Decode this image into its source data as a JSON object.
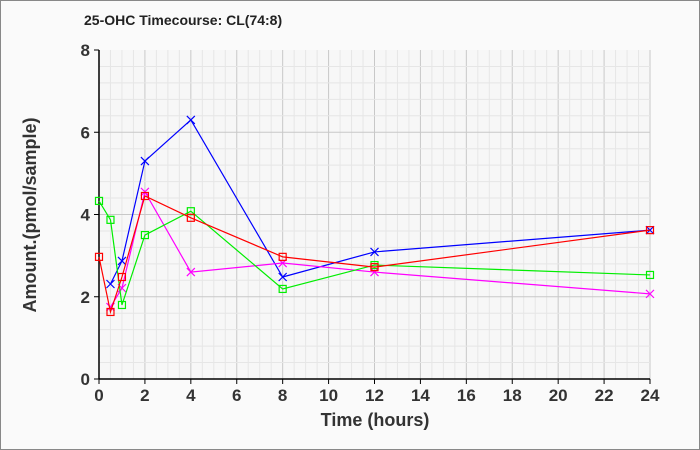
{
  "chart_data": {
    "type": "line",
    "title": "25-OHC Timecourse: CL(74:8)",
    "xlabel": "Time (hours)",
    "ylabel": "Amount.(pmol/sample)",
    "xlim": [
      0,
      24
    ],
    "ylim": [
      0,
      8
    ],
    "xticks": [
      "0",
      "2",
      "4",
      "6",
      "8",
      "10",
      "12",
      "14",
      "16",
      "18",
      "20",
      "22",
      "24"
    ],
    "yticks": [
      "0",
      "2",
      "4",
      "6",
      "8"
    ],
    "grid": true,
    "series": [
      {
        "name": "blue",
        "color": "#0000ff",
        "marker": "x",
        "x": [
          0.5,
          1,
          2,
          4,
          8,
          12,
          24
        ],
        "y": [
          2.31,
          2.87,
          5.3,
          6.3,
          2.48,
          3.09,
          3.62
        ]
      },
      {
        "name": "magenta",
        "color": "#ff00ff",
        "marker": "x",
        "x": [
          0.5,
          1,
          2,
          4,
          8,
          12,
          24
        ],
        "y": [
          1.75,
          2.21,
          4.55,
          2.6,
          2.82,
          2.6,
          2.07
        ]
      },
      {
        "name": "green",
        "color": "#00ee00",
        "marker": "square",
        "x": [
          0,
          0.5,
          1,
          2,
          4,
          8,
          12,
          24
        ],
        "y": [
          4.33,
          3.87,
          1.8,
          3.5,
          4.08,
          2.19,
          2.77,
          2.53
        ]
      },
      {
        "name": "red",
        "color": "#ff0000",
        "marker": "square",
        "x": [
          0,
          0.5,
          1,
          2,
          4,
          8,
          12,
          24
        ],
        "y": [
          2.97,
          1.63,
          2.48,
          4.45,
          3.92,
          2.97,
          2.72,
          3.62
        ]
      }
    ]
  }
}
